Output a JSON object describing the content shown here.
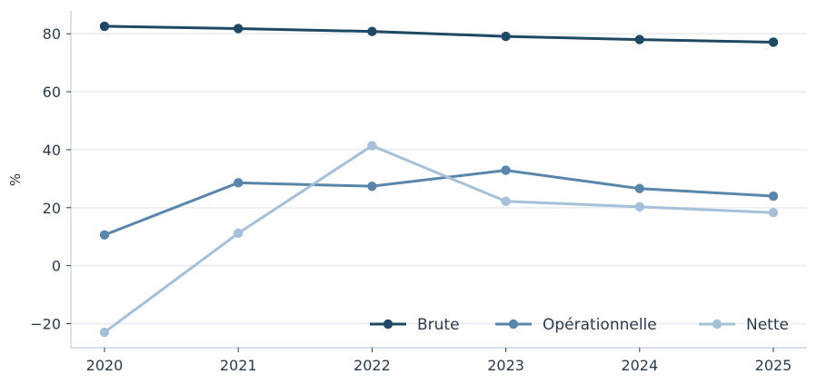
{
  "chart_data": {
    "type": "line",
    "x": [
      "2020",
      "2021",
      "2022",
      "2023",
      "2024",
      "2025"
    ],
    "series": [
      {
        "name": "Brute",
        "color": "#1f4864",
        "values": [
          82.6,
          81.8,
          80.8,
          79.1,
          78.0,
          77.1
        ]
      },
      {
        "name": "Opérationnelle",
        "color": "#5b86ab",
        "values": [
          10.6,
          28.6,
          27.4,
          32.9,
          26.6,
          24.0
        ]
      },
      {
        "name": "Nette",
        "color": "#a6c0d7",
        "values": [
          -23.0,
          11.2,
          41.4,
          22.2,
          20.3,
          18.3
        ]
      }
    ],
    "ylabel": "%",
    "ylim": [
      -28.3,
      87.9
    ],
    "yticks": [
      -20,
      0,
      20,
      40,
      60,
      80
    ],
    "ytick_labels": [
      "−20",
      "0",
      "20",
      "40",
      "60",
      "80"
    ],
    "grid": "horizontal",
    "legend_position": "bottom-right"
  }
}
